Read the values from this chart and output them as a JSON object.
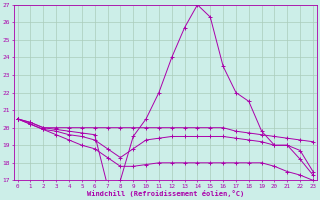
{
  "xlabel": "Windchill (Refroidissement éolien,°C)",
  "ylabel": "",
  "background_color": "#cceee8",
  "grid_color": "#aaccbb",
  "line_color": "#aa00aa",
  "x": [
    0,
    1,
    2,
    3,
    4,
    5,
    6,
    7,
    8,
    9,
    10,
    11,
    12,
    13,
    14,
    15,
    16,
    17,
    18,
    19,
    20,
    21,
    22,
    23
  ],
  "series1": [
    20.5,
    20.3,
    20.0,
    19.9,
    19.8,
    19.7,
    19.6,
    16.7,
    17.0,
    19.5,
    20.5,
    22.0,
    24.0,
    25.7,
    27.0,
    26.3,
    23.5,
    22.0,
    21.5,
    19.8,
    19.0,
    19.0,
    18.2,
    17.3
  ],
  "series2": [
    20.5,
    20.3,
    20.0,
    20.0,
    20.0,
    20.0,
    20.0,
    20.0,
    20.0,
    20.0,
    20.0,
    20.0,
    20.0,
    20.0,
    20.0,
    20.0,
    20.0,
    19.8,
    19.7,
    19.6,
    19.5,
    19.4,
    19.3,
    19.2
  ],
  "series3": [
    20.5,
    20.2,
    19.9,
    19.8,
    19.6,
    19.5,
    19.3,
    18.8,
    18.3,
    18.8,
    19.3,
    19.4,
    19.5,
    19.5,
    19.5,
    19.5,
    19.5,
    19.4,
    19.3,
    19.2,
    19.0,
    19.0,
    18.7,
    17.5
  ],
  "series4": [
    20.5,
    20.2,
    19.9,
    19.6,
    19.3,
    19.0,
    18.8,
    18.3,
    17.8,
    17.8,
    17.9,
    18.0,
    18.0,
    18.0,
    18.0,
    18.0,
    18.0,
    18.0,
    18.0,
    18.0,
    17.8,
    17.5,
    17.3,
    17.0
  ],
  "ylim_min": 17,
  "ylim_max": 27,
  "xlim_min": 0,
  "xlim_max": 23
}
